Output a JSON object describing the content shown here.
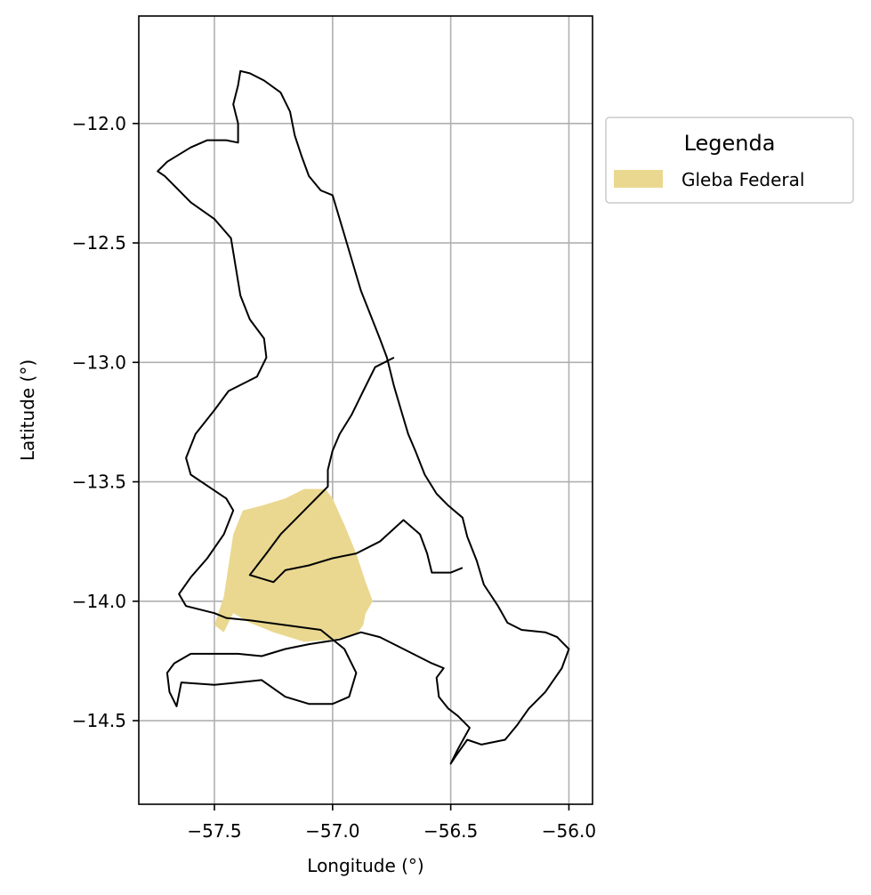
{
  "chart_data": {
    "type": "map",
    "xlabel": "Longitude (°)",
    "ylabel": "Latitude (°)",
    "xlim": [
      -57.82,
      -55.9
    ],
    "ylim": [
      -14.85,
      -11.55
    ],
    "xticks": [
      -57.5,
      -57.0,
      -56.5,
      -56.0
    ],
    "xtick_labels": [
      "−57.5",
      "−57.0",
      "−56.5",
      "−56.0"
    ],
    "yticks": [
      -12.0,
      -12.5,
      -13.0,
      -13.5,
      -14.0,
      -14.5
    ],
    "ytick_labels": [
      "−12.0",
      "−12.5",
      "−13.0",
      "−13.5",
      "−14.0",
      "−14.5"
    ],
    "grid": true,
    "legend": {
      "title": "Legenda",
      "placement": "outside-upper-right",
      "entries": [
        {
          "label": "Gleba Federal",
          "color": "#ead890"
        }
      ]
    },
    "colors": {
      "gleba_fill": "#ead890",
      "boundary_stroke": "#000000",
      "grid": "#b0b0b0"
    },
    "boundaries": [
      {
        "kind": "outer-outline",
        "coords": [
          [
            -57.39,
            -11.78
          ],
          [
            -57.35,
            -11.79
          ],
          [
            -57.29,
            -11.82
          ],
          [
            -57.22,
            -11.87
          ],
          [
            -57.18,
            -11.95
          ],
          [
            -57.16,
            -12.05
          ],
          [
            -57.13,
            -12.14
          ],
          [
            -57.1,
            -12.22
          ],
          [
            -57.05,
            -12.28
          ],
          [
            -57.0,
            -12.3
          ],
          [
            -56.97,
            -12.4
          ],
          [
            -56.94,
            -12.5
          ],
          [
            -56.91,
            -12.6
          ],
          [
            -56.88,
            -12.7
          ],
          [
            -56.84,
            -12.8
          ],
          [
            -56.8,
            -12.9
          ],
          [
            -56.77,
            -12.98
          ],
          [
            -56.74,
            -13.1
          ],
          [
            -56.71,
            -13.2
          ],
          [
            -56.68,
            -13.3
          ],
          [
            -56.65,
            -13.37
          ],
          [
            -56.61,
            -13.47
          ],
          [
            -56.56,
            -13.55
          ],
          [
            -56.51,
            -13.6
          ],
          [
            -56.45,
            -13.65
          ],
          [
            -56.43,
            -13.73
          ],
          [
            -56.39,
            -13.83
          ],
          [
            -56.36,
            -13.93
          ],
          [
            -56.3,
            -14.02
          ],
          [
            -56.26,
            -14.09
          ],
          [
            -56.2,
            -14.12
          ],
          [
            -56.1,
            -14.13
          ],
          [
            -56.05,
            -14.15
          ],
          [
            -56.0,
            -14.2
          ],
          [
            -56.03,
            -14.28
          ],
          [
            -56.1,
            -14.38
          ],
          [
            -56.17,
            -14.45
          ],
          [
            -56.22,
            -14.52
          ],
          [
            -56.27,
            -14.58
          ],
          [
            -56.37,
            -14.6
          ],
          [
            -56.43,
            -14.58
          ],
          [
            -56.48,
            -14.65
          ],
          [
            -56.5,
            -14.68
          ],
          [
            -56.47,
            -14.62
          ],
          [
            -56.42,
            -14.53
          ],
          [
            -56.47,
            -14.48
          ],
          [
            -56.51,
            -14.45
          ],
          [
            -56.55,
            -14.4
          ],
          [
            -56.56,
            -14.32
          ],
          [
            -56.53,
            -14.28
          ],
          [
            -56.58,
            -14.26
          ],
          [
            -56.7,
            -14.2
          ],
          [
            -56.8,
            -14.15
          ],
          [
            -56.88,
            -14.13
          ],
          [
            -56.97,
            -14.16
          ],
          [
            -57.1,
            -14.18
          ],
          [
            -57.2,
            -14.2
          ],
          [
            -57.3,
            -14.23
          ],
          [
            -57.4,
            -14.22
          ],
          [
            -57.5,
            -14.22
          ],
          [
            -57.6,
            -14.22
          ],
          [
            -57.67,
            -14.26
          ],
          [
            -57.7,
            -14.3
          ],
          [
            -57.69,
            -14.38
          ],
          [
            -57.66,
            -14.44
          ],
          [
            -57.64,
            -14.34
          ],
          [
            -57.5,
            -14.35
          ],
          [
            -57.4,
            -14.34
          ],
          [
            -57.3,
            -14.33
          ],
          [
            -57.2,
            -14.4
          ],
          [
            -57.1,
            -14.43
          ],
          [
            -57.0,
            -14.43
          ],
          [
            -56.93,
            -14.4
          ],
          [
            -56.9,
            -14.3
          ],
          [
            -56.95,
            -14.2
          ],
          [
            -57.05,
            -14.12
          ],
          [
            -57.2,
            -14.1
          ],
          [
            -57.35,
            -14.08
          ],
          [
            -57.45,
            -14.07
          ],
          [
            -57.5,
            -14.05
          ],
          [
            -57.62,
            -14.02
          ],
          [
            -57.65,
            -13.97
          ],
          [
            -57.6,
            -13.9
          ],
          [
            -57.53,
            -13.82
          ],
          [
            -57.46,
            -13.72
          ],
          [
            -57.42,
            -13.62
          ],
          [
            -57.45,
            -13.57
          ],
          [
            -57.51,
            -13.53
          ],
          [
            -57.6,
            -13.47
          ],
          [
            -57.62,
            -13.4
          ],
          [
            -57.58,
            -13.3
          ],
          [
            -57.5,
            -13.2
          ],
          [
            -57.44,
            -13.12
          ],
          [
            -57.32,
            -13.06
          ],
          [
            -57.28,
            -12.98
          ],
          [
            -57.29,
            -12.9
          ],
          [
            -57.35,
            -12.82
          ],
          [
            -57.39,
            -12.72
          ],
          [
            -57.41,
            -12.6
          ],
          [
            -57.43,
            -12.48
          ],
          [
            -57.5,
            -12.4
          ],
          [
            -57.6,
            -12.33
          ],
          [
            -57.66,
            -12.27
          ],
          [
            -57.71,
            -12.22
          ],
          [
            -57.74,
            -12.2
          ],
          [
            -57.7,
            -12.16
          ],
          [
            -57.6,
            -12.1
          ],
          [
            -57.53,
            -12.07
          ],
          [
            -57.45,
            -12.07
          ],
          [
            -57.4,
            -12.08
          ],
          [
            -57.4,
            -12.0
          ],
          [
            -57.42,
            -11.92
          ],
          [
            -57.4,
            -11.84
          ],
          [
            -57.39,
            -11.78
          ]
        ]
      },
      {
        "kind": "inner-line",
        "coords": [
          [
            -56.74,
            -12.98
          ],
          [
            -56.82,
            -13.02
          ],
          [
            -56.87,
            -13.12
          ],
          [
            -56.92,
            -13.22
          ],
          [
            -56.97,
            -13.3
          ],
          [
            -57.0,
            -13.37
          ],
          [
            -57.02,
            -13.45
          ],
          [
            -57.02,
            -13.52
          ],
          [
            -57.05,
            -13.55
          ],
          [
            -57.1,
            -13.6
          ],
          [
            -57.15,
            -13.65
          ],
          [
            -57.22,
            -13.72
          ],
          [
            -57.28,
            -13.8
          ],
          [
            -57.35,
            -13.89
          ],
          [
            -57.25,
            -13.92
          ],
          [
            -57.2,
            -13.87
          ],
          [
            -57.1,
            -13.85
          ],
          [
            -57.0,
            -13.82
          ],
          [
            -56.9,
            -13.8
          ],
          [
            -56.8,
            -13.75
          ],
          [
            -56.7,
            -13.66
          ],
          [
            -56.63,
            -13.72
          ],
          [
            -56.6,
            -13.8
          ],
          [
            -56.58,
            -13.88
          ],
          [
            -56.5,
            -13.88
          ],
          [
            -56.45,
            -13.86
          ]
        ]
      }
    ],
    "gleba_federal": [
      [
        -57.38,
        -13.62
      ],
      [
        -57.3,
        -13.6
      ],
      [
        -57.2,
        -13.57
      ],
      [
        -57.12,
        -13.53
      ],
      [
        -57.03,
        -13.53
      ],
      [
        -57.0,
        -13.57
      ],
      [
        -56.95,
        -13.68
      ],
      [
        -56.9,
        -13.8
      ],
      [
        -56.86,
        -13.92
      ],
      [
        -56.83,
        -14.0
      ],
      [
        -56.86,
        -14.05
      ],
      [
        -56.87,
        -14.1
      ],
      [
        -56.9,
        -14.14
      ],
      [
        -57.0,
        -14.16
      ],
      [
        -57.12,
        -14.17
      ],
      [
        -57.25,
        -14.13
      ],
      [
        -57.35,
        -14.09
      ],
      [
        -57.42,
        -14.05
      ],
      [
        -57.46,
        -14.13
      ],
      [
        -57.5,
        -14.1
      ],
      [
        -57.46,
        -13.98
      ],
      [
        -57.44,
        -13.85
      ],
      [
        -57.42,
        -13.72
      ],
      [
        -57.38,
        -13.62
      ]
    ]
  }
}
